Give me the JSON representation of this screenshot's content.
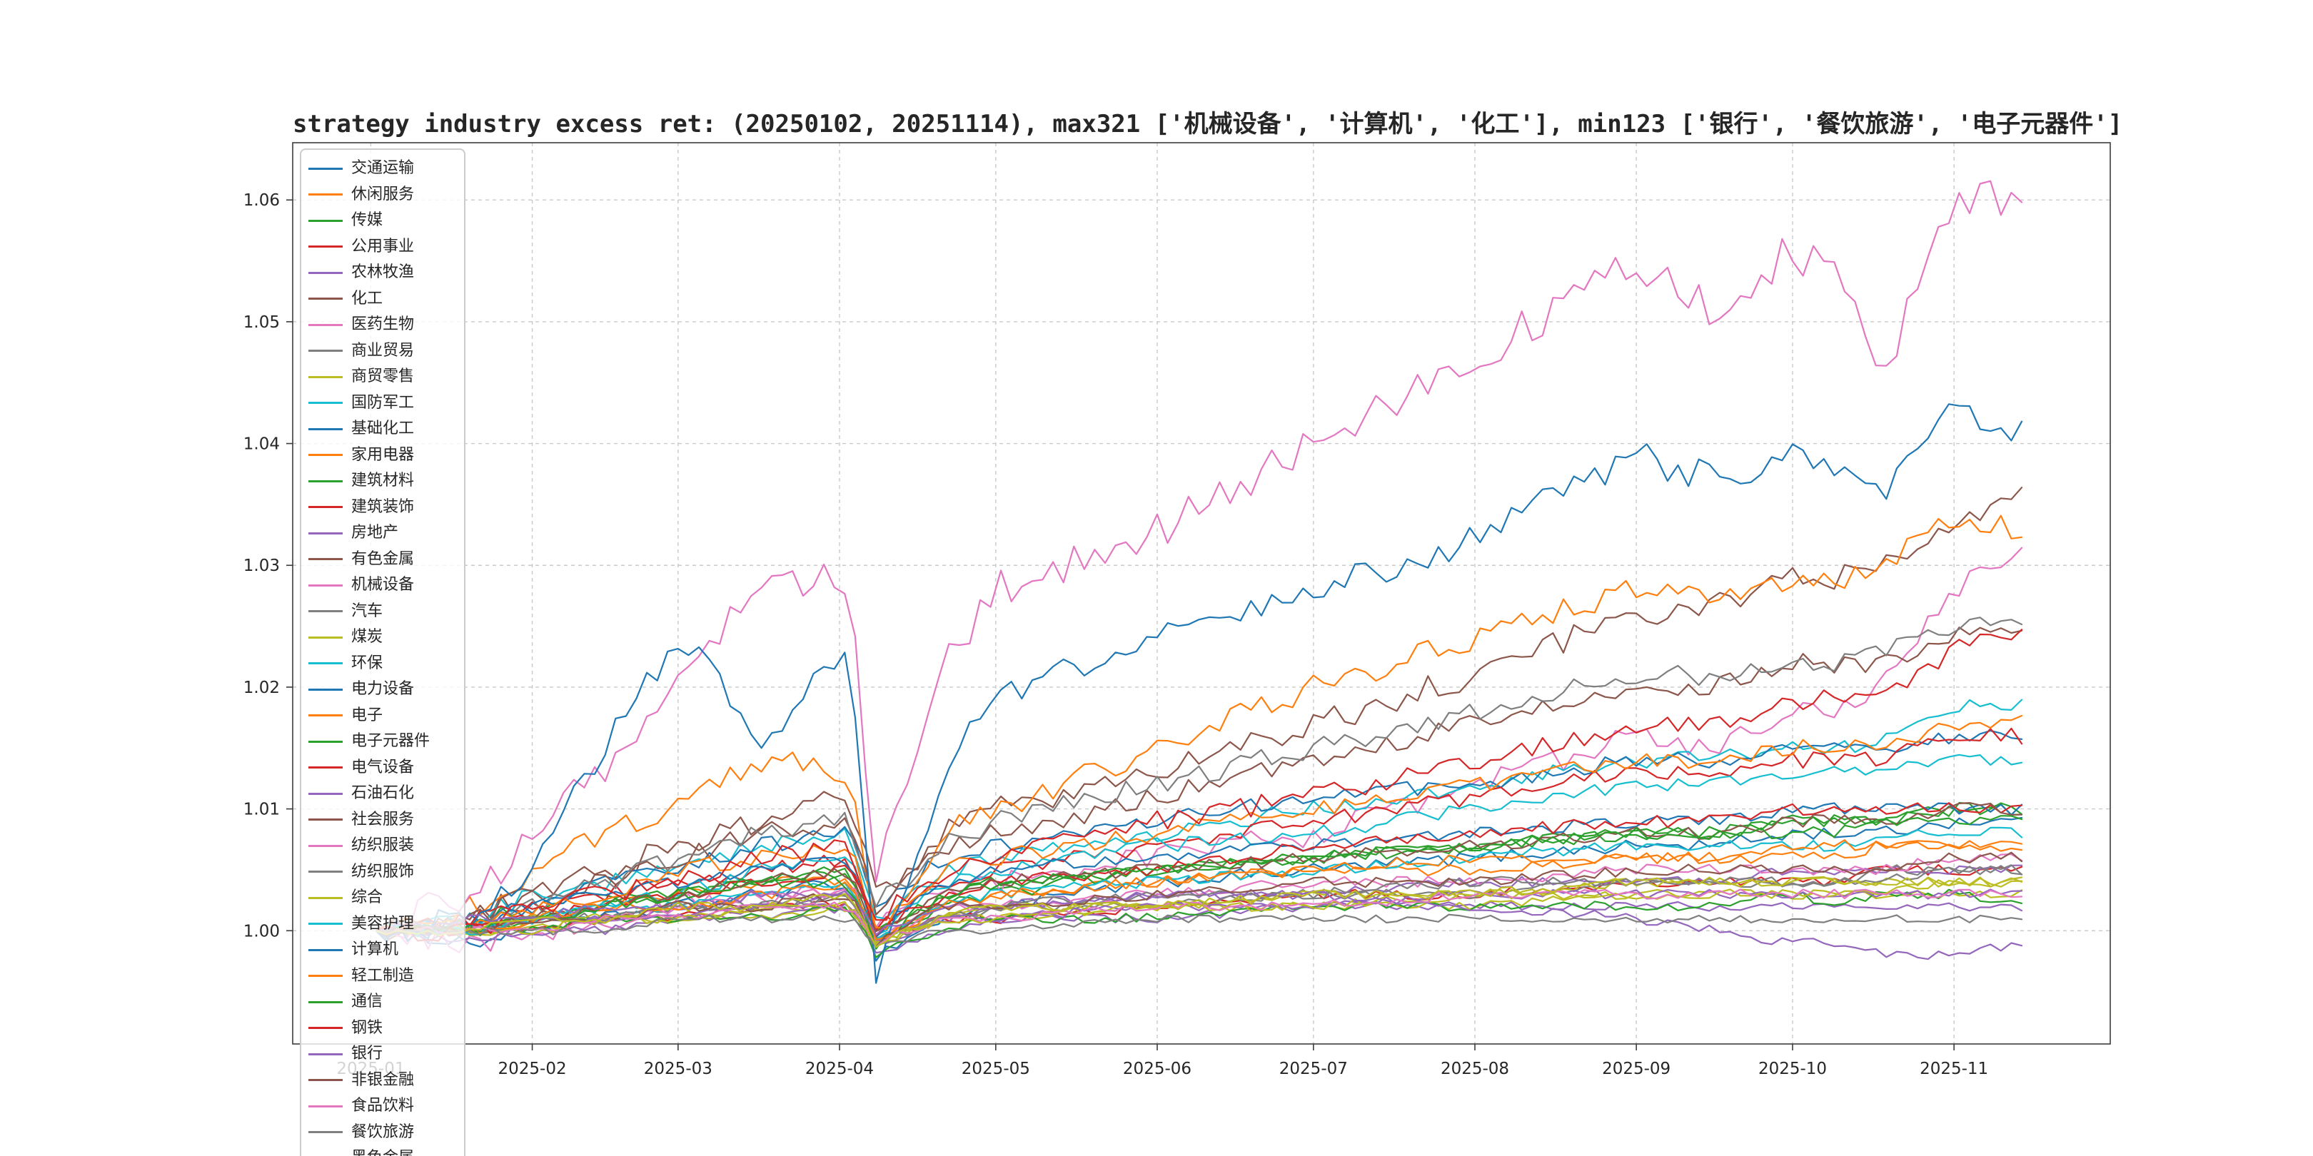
{
  "chart_data": {
    "type": "line",
    "title": "strategy industry excess ret: (20250102, 20251114), max321 ['机械设备', '计算机', '化工'], min123 ['银行', '餐饮旅游', '电子元器件']",
    "date_range": [
      "20250102",
      "20251114"
    ],
    "max3": [
      "机械设备",
      "计算机",
      "化工"
    ],
    "min3": [
      "银行",
      "餐饮旅游",
      "电子元器件"
    ],
    "grid": "dashed",
    "legend_position": "upper-left",
    "ylim": [
      0.9907,
      1.0647
    ],
    "x_domain_days": [
      -15,
      334
    ],
    "palette": [
      "#1f77b4",
      "#ff7f0e",
      "#2ca02c",
      "#d62728",
      "#9467bd",
      "#8c564b",
      "#e377c2",
      "#7f7f7f",
      "#bcbd22",
      "#17becf"
    ],
    "x_ticks": [
      {
        "day": 0,
        "label": "2025-01"
      },
      {
        "day": 31,
        "label": "2025-02"
      },
      {
        "day": 59,
        "label": "2025-03"
      },
      {
        "day": 90,
        "label": "2025-04"
      },
      {
        "day": 120,
        "label": "2025-05"
      },
      {
        "day": 151,
        "label": "2025-06"
      },
      {
        "day": 181,
        "label": "2025-07"
      },
      {
        "day": 212,
        "label": "2025-08"
      },
      {
        "day": 243,
        "label": "2025-09"
      },
      {
        "day": 273,
        "label": "2025-10"
      },
      {
        "day": 304,
        "label": "2025-11"
      }
    ],
    "y_ticks": [
      {
        "value": 1.0,
        "label": "1.00"
      },
      {
        "value": 1.01,
        "label": "1.01"
      },
      {
        "value": 1.02,
        "label": "1.02"
      },
      {
        "value": 1.03,
        "label": "1.03"
      },
      {
        "value": 1.04,
        "label": "1.04"
      },
      {
        "value": 1.05,
        "label": "1.05"
      },
      {
        "value": 1.06,
        "label": "1.06"
      }
    ],
    "keypoint_days": [
      1,
      20,
      31,
      45,
      59,
      75,
      92,
      97,
      110,
      120,
      151,
      181,
      212,
      243,
      258,
      273,
      282,
      290,
      304,
      317
    ],
    "series": [
      {
        "name": "交通运输",
        "values": [
          1.0,
          0.999,
          1.0,
          1.001,
          1.002,
          1.003,
          1.004,
          0.998,
          1.001,
          1.002,
          1.004,
          1.005,
          1.006,
          1.007,
          1.007,
          1.008,
          1.008,
          1.008,
          1.009,
          1.009
        ]
      },
      {
        "name": "休闲服务",
        "values": [
          1.0,
          1.0,
          1.001,
          1.002,
          1.003,
          1.004,
          1.004,
          0.999,
          1.002,
          1.003,
          1.004,
          1.005,
          1.005,
          1.006,
          1.006,
          1.006,
          1.006,
          1.007,
          1.007,
          1.007
        ]
      },
      {
        "name": "传媒",
        "values": [
          1.0,
          1.001,
          1.002,
          1.003,
          1.003,
          1.004,
          1.005,
          0.999,
          1.002,
          1.003,
          1.005,
          1.006,
          1.007,
          1.008,
          1.008,
          1.009,
          1.009,
          1.009,
          1.01,
          1.01
        ]
      },
      {
        "name": "公用事业",
        "values": [
          1.0,
          1.0,
          1.0,
          1.001,
          1.001,
          1.002,
          1.002,
          0.999,
          1.001,
          1.001,
          1.002,
          1.003,
          1.003,
          1.004,
          1.004,
          1.004,
          1.004,
          1.005,
          1.005,
          1.005
        ]
      },
      {
        "name": "农林牧渔",
        "values": [
          1.0,
          1.0,
          1.001,
          1.001,
          1.002,
          1.002,
          1.003,
          0.999,
          1.001,
          1.002,
          1.003,
          1.003,
          1.004,
          1.004,
          1.004,
          1.005,
          1.005,
          1.005,
          1.005,
          1.005
        ]
      },
      {
        "name": "化工",
        "values": [
          1.0,
          1.001,
          1.003,
          1.005,
          1.007,
          1.009,
          1.011,
          1.003,
          1.008,
          1.01,
          1.013,
          1.017,
          1.021,
          1.026,
          1.027,
          1.029,
          1.029,
          1.03,
          1.034,
          1.036
        ]
      },
      {
        "name": "医药生物",
        "values": [
          1.0,
          0.999,
          1.0,
          1.001,
          1.002,
          1.003,
          1.004,
          1.0,
          1.003,
          1.004,
          1.006,
          1.008,
          1.012,
          1.016,
          1.015,
          1.018,
          1.018,
          1.02,
          1.028,
          1.032
        ]
      },
      {
        "name": "商业贸易",
        "values": [
          1.0,
          1.0,
          1.001,
          1.001,
          1.002,
          1.002,
          1.003,
          0.999,
          1.001,
          1.002,
          1.002,
          1.003,
          1.003,
          1.004,
          1.004,
          1.004,
          1.004,
          1.005,
          1.005,
          1.005
        ]
      },
      {
        "name": "商贸零售",
        "values": [
          1.0,
          1.0,
          1.001,
          1.001,
          1.001,
          1.002,
          1.002,
          0.999,
          1.001,
          1.002,
          1.002,
          1.003,
          1.003,
          1.004,
          1.004,
          1.004,
          1.004,
          1.004,
          1.004,
          1.004
        ]
      },
      {
        "name": "国防军工",
        "values": [
          1.0,
          1.001,
          1.003,
          1.004,
          1.005,
          1.007,
          1.008,
          1.001,
          1.005,
          1.006,
          1.008,
          1.01,
          1.012,
          1.014,
          1.014,
          1.015,
          1.015,
          1.016,
          1.018,
          1.019
        ]
      },
      {
        "name": "基础化工",
        "values": [
          1.0,
          1.001,
          1.002,
          1.004,
          1.005,
          1.007,
          1.008,
          1.002,
          1.006,
          1.007,
          1.009,
          1.011,
          1.012,
          1.014,
          1.014,
          1.015,
          1.015,
          1.015,
          1.016,
          1.016
        ]
      },
      {
        "name": "家用电器",
        "values": [
          1.0,
          1.002,
          1.005,
          1.008,
          1.01,
          1.014,
          1.013,
          1.0,
          1.008,
          1.01,
          1.015,
          1.02,
          1.024,
          1.028,
          1.027,
          1.029,
          1.029,
          1.03,
          1.034,
          1.033
        ]
      },
      {
        "name": "建筑材料",
        "values": [
          1.0,
          1.0,
          1.001,
          1.002,
          1.003,
          1.004,
          1.005,
          1.0,
          1.003,
          1.004,
          1.005,
          1.006,
          1.007,
          1.008,
          1.008,
          1.009,
          1.009,
          1.009,
          1.01,
          1.01
        ]
      },
      {
        "name": "建筑装饰",
        "values": [
          1.0,
          1.001,
          1.002,
          1.003,
          1.004,
          1.005,
          1.006,
          1.0,
          1.004,
          1.005,
          1.007,
          1.009,
          1.011,
          1.013,
          1.013,
          1.014,
          1.014,
          1.014,
          1.016,
          1.016
        ]
      },
      {
        "name": "房地产",
        "values": [
          1.0,
          0.999,
          1.0,
          1.0,
          1.001,
          1.001,
          1.002,
          0.998,
          1.0,
          1.001,
          1.001,
          1.002,
          1.002,
          1.002,
          1.002,
          1.002,
          1.002,
          1.002,
          1.002,
          1.002
        ]
      },
      {
        "name": "有色金属",
        "values": [
          1.0,
          1.001,
          1.003,
          1.004,
          1.006,
          1.008,
          1.009,
          1.002,
          1.007,
          1.008,
          1.011,
          1.014,
          1.017,
          1.02,
          1.02,
          1.022,
          1.022,
          1.022,
          1.024,
          1.025
        ]
      },
      {
        "name": "机械设备",
        "values": [
          1.0,
          1.003,
          1.008,
          1.013,
          1.02,
          1.029,
          1.029,
          1.005,
          1.022,
          1.028,
          1.033,
          1.04,
          1.047,
          1.055,
          1.051,
          1.056,
          1.053,
          1.046,
          1.059,
          1.061
        ]
      },
      {
        "name": "汽车",
        "values": [
          1.0,
          1.001,
          1.002,
          1.004,
          1.006,
          1.008,
          1.009,
          1.002,
          1.007,
          1.009,
          1.012,
          1.015,
          1.018,
          1.021,
          1.021,
          1.022,
          1.022,
          1.023,
          1.025,
          1.025
        ]
      },
      {
        "name": "煤炭",
        "values": [
          1.0,
          1.0,
          1.0,
          1.001,
          1.001,
          1.001,
          1.002,
          0.999,
          1.001,
          1.001,
          1.002,
          1.002,
          1.002,
          1.003,
          1.003,
          1.003,
          1.003,
          1.003,
          1.003,
          1.003
        ]
      },
      {
        "name": "环保",
        "values": [
          1.0,
          1.0,
          1.001,
          1.002,
          1.003,
          1.005,
          1.006,
          1.0,
          1.004,
          1.005,
          1.007,
          1.008,
          1.01,
          1.012,
          1.012,
          1.013,
          1.013,
          1.013,
          1.014,
          1.014
        ]
      },
      {
        "name": "电力设备",
        "values": [
          1.0,
          1.0,
          1.002,
          1.003,
          1.004,
          1.005,
          1.006,
          1.0,
          1.004,
          1.005,
          1.006,
          1.007,
          1.008,
          1.009,
          1.009,
          1.01,
          1.01,
          1.01,
          1.01,
          1.01
        ]
      },
      {
        "name": "电子",
        "values": [
          1.0,
          1.001,
          1.002,
          1.003,
          1.005,
          1.006,
          1.007,
          1.0,
          1.005,
          1.006,
          1.008,
          1.01,
          1.012,
          1.014,
          1.014,
          1.015,
          1.015,
          1.015,
          1.017,
          1.017
        ]
      },
      {
        "name": "电子元器件",
        "values": [
          1.0,
          1.0,
          1.0,
          1.001,
          1.001,
          1.001,
          1.002,
          0.998,
          1.0,
          1.001,
          1.001,
          1.002,
          1.002,
          1.002,
          1.002,
          1.003,
          1.002,
          1.003,
          1.003,
          1.002
        ]
      },
      {
        "name": "电气设备",
        "values": [
          1.0,
          1.0,
          1.001,
          1.002,
          1.003,
          1.004,
          1.005,
          1.0,
          1.003,
          1.004,
          1.005,
          1.007,
          1.008,
          1.009,
          1.009,
          1.01,
          1.01,
          1.01,
          1.01,
          1.01
        ]
      },
      {
        "name": "石油石化",
        "values": [
          1.0,
          1.0,
          1.001,
          1.001,
          1.001,
          1.002,
          1.002,
          0.999,
          1.001,
          1.001,
          1.002,
          1.002,
          1.003,
          1.003,
          1.003,
          1.003,
          1.003,
          1.003,
          1.003,
          1.003
        ]
      },
      {
        "name": "社会服务",
        "values": [
          1.0,
          1.0,
          1.001,
          1.002,
          1.003,
          1.004,
          1.005,
          1.0,
          1.003,
          1.004,
          1.005,
          1.006,
          1.007,
          1.008,
          1.008,
          1.009,
          1.009,
          1.009,
          1.01,
          1.01
        ]
      },
      {
        "name": "纺织服装",
        "values": [
          1.0,
          1.0,
          1.001,
          1.001,
          1.002,
          1.003,
          1.003,
          0.999,
          1.002,
          1.002,
          1.003,
          1.004,
          1.004,
          1.005,
          1.005,
          1.005,
          1.005,
          1.005,
          1.006,
          1.006
        ]
      },
      {
        "name": "纺织服饰",
        "values": [
          1.0,
          1.0,
          1.001,
          1.001,
          1.002,
          1.002,
          1.003,
          0.999,
          1.001,
          1.002,
          1.003,
          1.003,
          1.004,
          1.004,
          1.004,
          1.004,
          1.004,
          1.004,
          1.005,
          1.005
        ]
      },
      {
        "name": "综合",
        "values": [
          1.0,
          1.0,
          1.0,
          1.001,
          1.001,
          1.002,
          1.002,
          0.999,
          1.001,
          1.001,
          1.002,
          1.002,
          1.003,
          1.003,
          1.003,
          1.003,
          1.003,
          1.003,
          1.004,
          1.004
        ]
      },
      {
        "name": "美容护理",
        "values": [
          1.0,
          1.0,
          1.001,
          1.002,
          1.002,
          1.003,
          1.004,
          0.999,
          1.002,
          1.003,
          1.004,
          1.005,
          1.006,
          1.007,
          1.007,
          1.007,
          1.007,
          1.008,
          1.008,
          1.008
        ]
      },
      {
        "name": "计算机",
        "values": [
          1.0,
          1.001,
          1.005,
          1.015,
          1.024,
          1.016,
          1.023,
          0.997,
          1.013,
          1.019,
          1.024,
          1.028,
          1.032,
          1.039,
          1.037,
          1.039,
          1.038,
          1.036,
          1.043,
          1.041
        ]
      },
      {
        "name": "轻工制造",
        "values": [
          1.0,
          1.0,
          1.001,
          1.002,
          1.002,
          1.003,
          1.004,
          0.999,
          1.002,
          1.003,
          1.004,
          1.005,
          1.006,
          1.006,
          1.006,
          1.007,
          1.007,
          1.007,
          1.007,
          1.007
        ]
      },
      {
        "name": "通信",
        "values": [
          1.0,
          1.0,
          1.001,
          1.002,
          1.003,
          1.004,
          1.004,
          0.999,
          1.003,
          1.004,
          1.005,
          1.006,
          1.007,
          1.008,
          1.008,
          1.008,
          1.008,
          1.009,
          1.009,
          1.009
        ]
      },
      {
        "name": "钢铁",
        "values": [
          1.0,
          1.0,
          1.002,
          1.003,
          1.004,
          1.006,
          1.007,
          1.001,
          1.005,
          1.006,
          1.009,
          1.011,
          1.014,
          1.017,
          1.017,
          1.019,
          1.019,
          1.019,
          1.023,
          1.025
        ]
      },
      {
        "name": "银行",
        "values": [
          1.0,
          1.001,
          1.001,
          1.002,
          1.002,
          1.003,
          1.003,
          1.0,
          1.002,
          1.002,
          1.003,
          1.003,
          1.002,
          1.001,
          1.0,
          0.999,
          0.999,
          0.998,
          0.998,
          0.999
        ]
      },
      {
        "name": "非银金融",
        "values": [
          1.0,
          1.0,
          1.001,
          1.001,
          1.002,
          1.002,
          1.003,
          0.999,
          1.002,
          1.002,
          1.003,
          1.004,
          1.004,
          1.005,
          1.005,
          1.005,
          1.005,
          1.005,
          1.006,
          1.006
        ]
      },
      {
        "name": "食品饮料",
        "values": [
          1.0,
          1.0,
          1.0,
          1.001,
          1.001,
          1.002,
          1.002,
          0.999,
          1.001,
          1.001,
          1.002,
          1.002,
          1.003,
          1.003,
          1.003,
          1.003,
          1.003,
          1.003,
          1.003,
          1.003
        ]
      },
      {
        "name": "餐饮旅游",
        "values": [
          1.0,
          1.0,
          1.0,
          1.0,
          1.001,
          1.001,
          1.001,
          0.999,
          1.0,
          1.0,
          1.001,
          1.001,
          1.001,
          1.001,
          1.001,
          1.001,
          1.001,
          1.001,
          1.001,
          1.001
        ]
      },
      {
        "name": "黑色金属",
        "values": [
          1.0,
          1.0,
          1.001,
          1.001,
          1.002,
          1.002,
          1.003,
          0.999,
          1.001,
          1.002,
          1.002,
          1.003,
          1.003,
          1.004,
          1.004,
          1.004,
          1.004,
          1.004,
          1.004,
          1.004
        ]
      }
    ]
  }
}
